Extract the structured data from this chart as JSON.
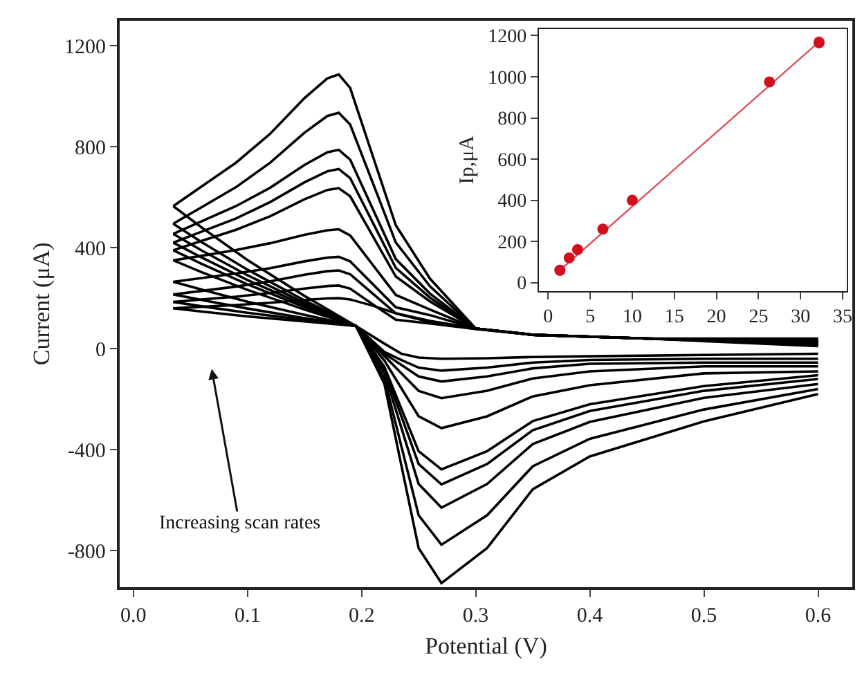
{
  "chart_data": [
    {
      "type": "line",
      "xlabel": "Potential (V)",
      "ylabel": "Current (μA)",
      "xlim": [
        -0.012,
        0.63
      ],
      "xticks": [
        {
          "value": 0,
          "label": "0.0"
        },
        0.1,
        0.2,
        0.3,
        0.4,
        0.5,
        0.6
      ],
      "ylim": [
        -945,
        1300
      ],
      "yticks": [
        -800,
        -400,
        0,
        400,
        800,
        1200
      ],
      "marker": "none",
      "line_style": "solid",
      "annotations": [
        "Increasing scan rates"
      ],
      "series": [
        {
          "color": "#000000",
          "x": [
            0.035,
            0.06,
            0.09,
            0.12,
            0.15,
            0.17,
            0.18,
            0.19,
            0.21,
            0.23,
            0.26,
            0.3,
            0.35,
            0.45,
            0.6
          ],
          "values": [
            160,
            166,
            173,
            182,
            193,
            199,
            200,
            195,
            170,
            140,
            110,
            80,
            55,
            40,
            10
          ]
        },
        {
          "color": "#000000",
          "x": [
            0.035,
            0.06,
            0.1,
            0.15,
            0.195,
            0.22,
            0.235,
            0.25,
            0.27,
            0.31,
            0.35,
            0.4,
            0.5,
            0.6
          ],
          "values": [
            160,
            147,
            128,
            108,
            90,
            20,
            -20,
            -35,
            -40,
            -38,
            -33,
            -30,
            -25,
            -20
          ]
        },
        {
          "color": "#000000",
          "x": [
            0.035,
            0.06,
            0.09,
            0.12,
            0.15,
            0.17,
            0.18,
            0.19,
            0.21,
            0.23,
            0.26,
            0.3,
            0.35,
            0.45,
            0.6
          ],
          "values": [
            185,
            195,
            206,
            221,
            238,
            248,
            250,
            238,
            175,
            115,
            100,
            78,
            55,
            40,
            15
          ]
        },
        {
          "color": "#000000",
          "x": [
            0.035,
            0.06,
            0.1,
            0.15,
            0.195,
            0.22,
            0.235,
            0.25,
            0.27,
            0.31,
            0.35,
            0.4,
            0.5,
            0.6
          ],
          "values": [
            185,
            168,
            142,
            114,
            90,
            -13,
            -45,
            -75,
            -87,
            -75,
            -55,
            -45,
            -40,
            -40
          ]
        },
        {
          "color": "#000000",
          "x": [
            0.035,
            0.06,
            0.09,
            0.12,
            0.15,
            0.17,
            0.18,
            0.19,
            0.21,
            0.23,
            0.26,
            0.3,
            0.35,
            0.45,
            0.6
          ],
          "values": [
            215,
            229,
            246,
            267,
            293,
            307,
            310,
            295,
            217,
            140,
            105,
            78,
            55,
            40,
            18
          ]
        },
        {
          "color": "#000000",
          "x": [
            0.035,
            0.06,
            0.1,
            0.15,
            0.195,
            0.22,
            0.235,
            0.25,
            0.27,
            0.31,
            0.35,
            0.4,
            0.5,
            0.6
          ],
          "values": [
            215,
            193,
            159,
            121,
            90,
            -20,
            -65,
            -110,
            -130,
            -110,
            -78,
            -60,
            -55,
            -55
          ]
        },
        {
          "color": "#000000",
          "x": [
            0.035,
            0.06,
            0.09,
            0.12,
            0.15,
            0.17,
            0.18,
            0.19,
            0.21,
            0.23,
            0.26,
            0.3,
            0.35,
            0.45,
            0.6
          ],
          "values": [
            265,
            280,
            298,
            319,
            346,
            361,
            364,
            346,
            255,
            164,
            133,
            80,
            55,
            40,
            20
          ]
        },
        {
          "color": "#000000",
          "x": [
            0.035,
            0.06,
            0.1,
            0.15,
            0.195,
            0.22,
            0.235,
            0.25,
            0.27,
            0.31,
            0.35,
            0.4,
            0.5,
            0.6
          ],
          "values": [
            265,
            234,
            186,
            134,
            90,
            -29,
            -98,
            -167,
            -196,
            -167,
            -118,
            -90,
            -70,
            -70
          ]
        },
        {
          "color": "#000000",
          "x": [
            0.035,
            0.06,
            0.09,
            0.12,
            0.15,
            0.17,
            0.18,
            0.19,
            0.21,
            0.23,
            0.26,
            0.3,
            0.35,
            0.45,
            0.6
          ],
          "values": [
            350,
            368,
            391,
            418,
            451,
            469,
            473,
            449,
            331,
            213,
            155,
            80,
            55,
            40,
            22
          ]
        },
        {
          "color": "#000000",
          "x": [
            0.035,
            0.06,
            0.1,
            0.15,
            0.195,
            0.22,
            0.235,
            0.25,
            0.27,
            0.31,
            0.35,
            0.4,
            0.5,
            0.6
          ],
          "values": [
            350,
            303,
            233,
            155,
            90,
            -47,
            -158,
            -268,
            -315,
            -268,
            -189,
            -145,
            -98,
            -90
          ]
        },
        {
          "color": "#000000",
          "x": [
            0.035,
            0.06,
            0.09,
            0.12,
            0.15,
            0.17,
            0.18,
            0.19,
            0.21,
            0.23,
            0.26,
            0.3,
            0.35,
            0.45,
            0.6
          ],
          "values": [
            390,
            427,
            471,
            525,
            592,
            629,
            636,
            604,
            445,
            286,
            187,
            80,
            55,
            40,
            25
          ]
        },
        {
          "color": "#000000",
          "x": [
            0.035,
            0.06,
            0.1,
            0.15,
            0.195,
            0.22,
            0.235,
            0.25,
            0.27,
            0.31,
            0.35,
            0.4,
            0.5,
            0.6
          ],
          "values": [
            390,
            336,
            255,
            165,
            90,
            -72,
            -239,
            -406,
            -478,
            -406,
            -287,
            -220,
            -148,
            -105
          ]
        },
        {
          "color": "#000000",
          "x": [
            0.035,
            0.06,
            0.09,
            0.12,
            0.15,
            0.17,
            0.18,
            0.19,
            0.21,
            0.23,
            0.26,
            0.3,
            0.35,
            0.45,
            0.6
          ],
          "values": [
            420,
            464,
            516,
            581,
            659,
            703,
            712,
            676,
            498,
            320,
            202,
            80,
            55,
            40,
            28
          ]
        },
        {
          "color": "#000000",
          "x": [
            0.035,
            0.06,
            0.1,
            0.15,
            0.195,
            0.22,
            0.235,
            0.25,
            0.27,
            0.31,
            0.35,
            0.4,
            0.5,
            0.6
          ],
          "values": [
            420,
            361,
            272,
            173,
            90,
            -81,
            -269,
            -457,
            -538,
            -457,
            -323,
            -247,
            -167,
            -120
          ]
        },
        {
          "color": "#000000",
          "x": [
            0.035,
            0.06,
            0.09,
            0.12,
            0.15,
            0.17,
            0.18,
            0.19,
            0.21,
            0.23,
            0.26,
            0.3,
            0.35,
            0.45,
            0.6
          ],
          "values": [
            455,
            505,
            565,
            638,
            728,
            778,
            788,
            749,
            552,
            355,
            218,
            80,
            55,
            40,
            30
          ]
        },
        {
          "color": "#000000",
          "x": [
            0.035,
            0.06,
            0.1,
            0.15,
            0.195,
            0.22,
            0.235,
            0.25,
            0.27,
            0.31,
            0.35,
            0.4,
            0.5,
            0.6
          ],
          "values": [
            455,
            389,
            291,
            181,
            90,
            -95,
            -315,
            -536,
            -630,
            -536,
            -378,
            -290,
            -195,
            -140
          ]
        },
        {
          "color": "#000000",
          "x": [
            0.035,
            0.06,
            0.09,
            0.12,
            0.15,
            0.17,
            0.18,
            0.19,
            0.21,
            0.23,
            0.26,
            0.3,
            0.35,
            0.45,
            0.6
          ],
          "values": [
            495,
            561,
            640,
            737,
            856,
            922,
            935,
            888,
            655,
            421,
            247,
            80,
            55,
            40,
            35
          ]
        },
        {
          "color": "#000000",
          "x": [
            0.035,
            0.06,
            0.1,
            0.15,
            0.195,
            0.22,
            0.235,
            0.25,
            0.27,
            0.31,
            0.35,
            0.4,
            0.5,
            0.6
          ],
          "values": [
            495,
            422,
            313,
            191,
            90,
            -117,
            -389,
            -660,
            -777,
            -660,
            -466,
            -357,
            -241,
            -160
          ]
        },
        {
          "color": "#000000",
          "x": [
            0.035,
            0.06,
            0.09,
            0.12,
            0.15,
            0.17,
            0.18,
            0.19,
            0.21,
            0.23,
            0.26,
            0.3,
            0.35,
            0.45,
            0.6
          ],
          "values": [
            565,
            643,
            737,
            852,
            993,
            1071,
            1087,
            1033,
            761,
            489,
            277,
            80,
            55,
            40,
            40
          ]
        },
        {
          "color": "#000000",
          "x": [
            0.035,
            0.06,
            0.1,
            0.15,
            0.195,
            0.22,
            0.235,
            0.25,
            0.27,
            0.31,
            0.35,
            0.4,
            0.5,
            0.6
          ],
          "values": [
            565,
            480,
            351,
            209,
            90,
            -139,
            -465,
            -790,
            -929,
            -790,
            -557,
            -427,
            -288,
            -180
          ]
        }
      ]
    },
    {
      "type": "scatter",
      "ylabel": "Ip,μA",
      "xlim": [
        -1.1,
        35.5
      ],
      "xticks": [
        0,
        5,
        10,
        15,
        20,
        25,
        30,
        35
      ],
      "ylim": [
        -40,
        1233
      ],
      "yticks": [
        0,
        200,
        400,
        600,
        800,
        1000,
        1200
      ],
      "marker": "circle",
      "series": [
        {
          "type": "line",
          "color": "#e0505a",
          "x": [
            1.4,
            32.2
          ],
          "values": [
            60,
            1170
          ]
        },
        {
          "type": "scatter",
          "color": "#d0101e",
          "x": [
            1.4,
            2.5,
            3.5,
            6.5,
            10,
            26.3,
            32.2
          ],
          "values": [
            60,
            120,
            160,
            260,
            400,
            975,
            1165
          ]
        }
      ]
    }
  ]
}
